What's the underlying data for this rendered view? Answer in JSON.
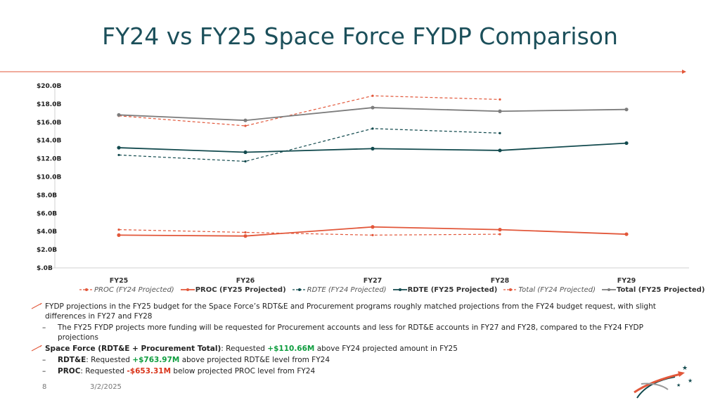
{
  "slide": {
    "title": "FY24 vs FY25 Space Force FYDP Comparison",
    "page_number": "8",
    "date": "3/2/2025"
  },
  "colors": {
    "accent_orange": "#e2573a",
    "dark_teal": "#124a4e",
    "gray": "#7c7c7c",
    "green": "#0f9d3f",
    "red": "#d9361c"
  },
  "chart_data": {
    "type": "line",
    "categories": [
      "FY25",
      "FY26",
      "FY27",
      "FY28",
      "FY29"
    ],
    "y_tick_labels": [
      "$.0B",
      "$2.0B",
      "$4.0B",
      "$6.0B",
      "$8.0B",
      "$10.0B",
      "$12.0B",
      "$14.0B",
      "$16.0B",
      "$18.0B",
      "$20.0B"
    ],
    "ylim": [
      0,
      20
    ],
    "grid": false,
    "legend_position": "bottom",
    "series": [
      {
        "name": "PROC (FY24 Projected)",
        "values": [
          4.2,
          3.9,
          3.6,
          3.7,
          null
        ],
        "color": "#e2573a",
        "dashed": true,
        "italic": true
      },
      {
        "name": "PROC (FY25 Projected)",
        "values": [
          3.6,
          3.5,
          4.5,
          4.2,
          3.7
        ],
        "color": "#e2573a",
        "dashed": false,
        "italic": false
      },
      {
        "name": "RDTE (FY24 Projected)",
        "values": [
          12.4,
          11.7,
          15.3,
          14.8,
          null
        ],
        "color": "#124a4e",
        "dashed": true,
        "italic": true
      },
      {
        "name": "RDTE (FY25 Projected)",
        "values": [
          13.2,
          12.7,
          13.1,
          12.9,
          13.7
        ],
        "color": "#124a4e",
        "dashed": false,
        "italic": false
      },
      {
        "name": "Total (FY24 Projected)",
        "values": [
          16.7,
          15.6,
          18.9,
          18.5,
          null
        ],
        "color": "#e2573a",
        "dashed": true,
        "italic": true
      },
      {
        "name": "Total (FY25 Projected)",
        "values": [
          16.8,
          16.2,
          17.6,
          17.2,
          17.4
        ],
        "color": "#7c7c7c",
        "dashed": false,
        "italic": false
      }
    ]
  },
  "notes": {
    "bullet1": "FYDP projections in the FY25 budget for the Space Force’s RDT&E and Procurement programs roughly matched projections from the FY24 budget request, with slight differences in FY27 and FY28",
    "sub1_dash": "–",
    "sub1": "The FY25 FYDP projects more funding will be requested for Procurement accounts and less for RDT&E accounts in FY27 and FY28, compared to the FY24 FYDP projections",
    "bullet2_label": "Space Force (RDT&E + Procurement Total)",
    "bullet2_pre": ": Requested ",
    "bullet2_value": "+$110.66M",
    "bullet2_post": " above FY24 projected amount in FY25",
    "sub2_dash": "–",
    "sub2_label": "RDT&E",
    "sub2_pre": ": Requested ",
    "sub2_value": "+$763.97M",
    "sub2_post": " above projected RDT&E level from FY24",
    "sub3_dash": "–",
    "sub3_label": "PROC",
    "sub3_pre": ": Requested ",
    "sub3_value": "-$653.31M",
    "sub3_post": " below projected PROC level from FY24"
  }
}
